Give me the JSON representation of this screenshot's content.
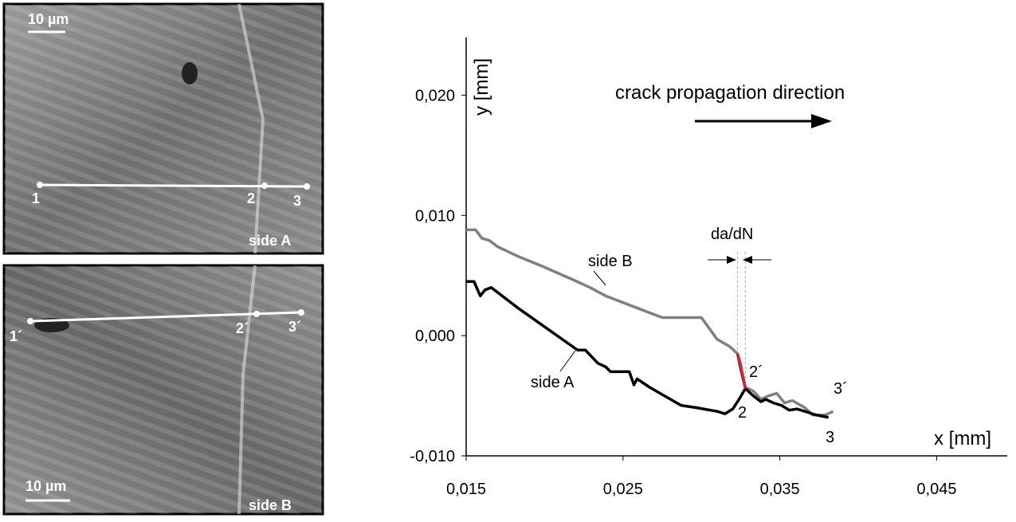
{
  "images": {
    "side_a": {
      "scale": "10 µm",
      "points": [
        "1",
        "2",
        "3"
      ],
      "label": "side A"
    },
    "side_b": {
      "scale": "10 µm",
      "points": [
        "1´",
        "2´",
        "3´"
      ],
      "label": "side B"
    }
  },
  "chart_data": {
    "type": "line",
    "xlabel": "x [mm]",
    "ylabel": "y [mm]",
    "annotations": {
      "direction": "crack propagation direction",
      "side_b": "side B",
      "side_a": "side A",
      "dadn": "da/dN",
      "p2": "2",
      "p2b": "2´",
      "p3": "3",
      "p3b": "3´"
    },
    "xlim": [
      0.015,
      0.0495
    ],
    "ylim": [
      -0.01,
      0.0248
    ],
    "xticks": [
      {
        "value": 0.015,
        "label": "0,015"
      },
      {
        "value": 0.025,
        "label": "0,025"
      },
      {
        "value": 0.035,
        "label": "0,035"
      },
      {
        "value": 0.045,
        "label": "0,045"
      }
    ],
    "yticks": [
      {
        "value": -0.01,
        "label": "-0,010"
      },
      {
        "value": 0.0,
        "label": "0,000"
      },
      {
        "value": 0.01,
        "label": "0,010"
      },
      {
        "value": 0.02,
        "label": "0,020"
      }
    ],
    "series": [
      {
        "name": "side B",
        "color": "#808080",
        "x": [
          0.015,
          0.0156,
          0.016,
          0.0165,
          0.017,
          0.0183,
          0.0198,
          0.0219,
          0.0229,
          0.0239,
          0.0259,
          0.0275,
          0.029,
          0.03,
          0.031,
          0.0318,
          0.0323,
          0.0325,
          0.0328,
          0.0333,
          0.0338,
          0.0343,
          0.0348,
          0.0353,
          0.0358,
          0.0366,
          0.0371,
          0.0379,
          0.0384
        ],
        "values": [
          0.0088,
          0.0088,
          0.0081,
          0.0079,
          0.0074,
          0.0066,
          0.0058,
          0.0046,
          0.004,
          0.0033,
          0.0023,
          0.0015,
          0.0015,
          0.0015,
          -0.0003,
          -0.0009,
          -0.0015,
          -0.0023,
          -0.0043,
          -0.0046,
          -0.0053,
          -0.005,
          -0.0048,
          -0.0056,
          -0.0054,
          -0.006,
          -0.0066,
          -0.0066,
          -0.0063
        ]
      },
      {
        "name": "side A",
        "color": "#000000",
        "x": [
          0.015,
          0.0155,
          0.0159,
          0.0162,
          0.0166,
          0.0183,
          0.0208,
          0.0221,
          0.0226,
          0.0234,
          0.0239,
          0.0242,
          0.0247,
          0.0254,
          0.0257,
          0.0259,
          0.0267,
          0.0287,
          0.0297,
          0.031,
          0.0315,
          0.032,
          0.0324,
          0.0328,
          0.0333,
          0.0338,
          0.0341,
          0.0346,
          0.0351,
          0.0356,
          0.0361,
          0.0366,
          0.0373,
          0.0381
        ],
        "values": [
          0.0045,
          0.0045,
          0.0033,
          0.0038,
          0.004,
          0.0023,
          0.0,
          -0.0012,
          -0.0012,
          -0.0023,
          -0.0026,
          -0.003,
          -0.003,
          -0.003,
          -0.0041,
          -0.0036,
          -0.0043,
          -0.0058,
          -0.006,
          -0.0063,
          -0.0065,
          -0.0061,
          -0.0053,
          -0.0044,
          -0.005,
          -0.0055,
          -0.0053,
          -0.0056,
          -0.0058,
          -0.0062,
          -0.0061,
          -0.0063,
          -0.0066,
          -0.0068
        ]
      },
      {
        "color": "#c0282d",
        "x": [
          0.0323,
          0.0325,
          0.0328
        ],
        "values": [
          -0.0015,
          -0.0028,
          -0.0044
        ]
      }
    ]
  }
}
